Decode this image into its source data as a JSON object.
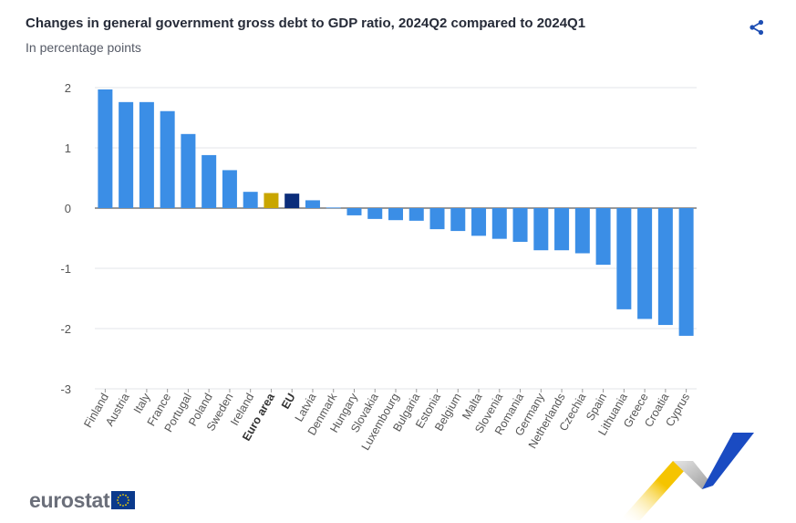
{
  "header": {
    "title": "Changes in general government gross debt to GDP ratio, 2024Q2 compared to 2024Q1",
    "subtitle": "In percentage points"
  },
  "logo": {
    "text": "eurostat"
  },
  "icons": {
    "share": "share-icon",
    "flag": "eu-flag-icon"
  },
  "colors": {
    "default_bar": "#3b8ee6",
    "euro_area_bar": "#c9a600",
    "eu_bar": "#0b2d7a",
    "grid": "#e3e6ea",
    "accent": "#1f4fb3"
  },
  "chart_data": {
    "type": "bar",
    "title": "Changes in general government gross debt to GDP ratio, 2024Q2 compared to 2024Q1",
    "subtitle": "In percentage points",
    "ylim": [
      -3,
      2
    ],
    "yticks": [
      2,
      1,
      0,
      -1,
      -2,
      -3
    ],
    "grid": true,
    "categories": [
      "Finland",
      "Austria",
      "Italy",
      "France",
      "Portugal",
      "Poland",
      "Sweden",
      "Ireland",
      "Euro area",
      "EU",
      "Latvia",
      "Denmark",
      "Hungary",
      "Slovakia",
      "Luxembourg",
      "Bulgaria",
      "Estonia",
      "Belgium",
      "Malta",
      "Slovenia",
      "Romania",
      "Germany",
      "Netherlands",
      "Czechia",
      "Spain",
      "Lithuania",
      "Greece",
      "Croatia",
      "Cyprus"
    ],
    "values": [
      1.97,
      1.76,
      1.76,
      1.61,
      1.23,
      0.88,
      0.63,
      0.27,
      0.25,
      0.24,
      0.13,
      0.01,
      -0.12,
      -0.18,
      -0.2,
      -0.21,
      -0.35,
      -0.38,
      -0.46,
      -0.51,
      -0.56,
      -0.7,
      -0.7,
      -0.75,
      -0.94,
      -1.68,
      -1.84,
      -1.94,
      -2.12
    ],
    "highlight": {
      "Euro area": "#c9a600",
      "EU": "#0b2d7a"
    }
  }
}
